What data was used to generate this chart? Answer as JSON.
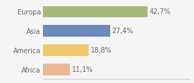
{
  "categories": [
    "Africa",
    "America",
    "Asia",
    "Europa"
  ],
  "values": [
    11.1,
    18.8,
    27.4,
    42.7
  ],
  "labels": [
    "11,1%",
    "18,8%",
    "27,4%",
    "42,7%"
  ],
  "colors": [
    "#e8b898",
    "#f0c96a",
    "#6b8cba",
    "#a8b87a"
  ],
  "xlim": [
    0,
    60
  ],
  "background_color": "#f5f5f5",
  "bar_height": 0.6,
  "label_fontsize": 7.0,
  "tick_fontsize": 7.0,
  "label_color": "#666666",
  "tick_color": "#666666",
  "spine_color": "#cccccc"
}
